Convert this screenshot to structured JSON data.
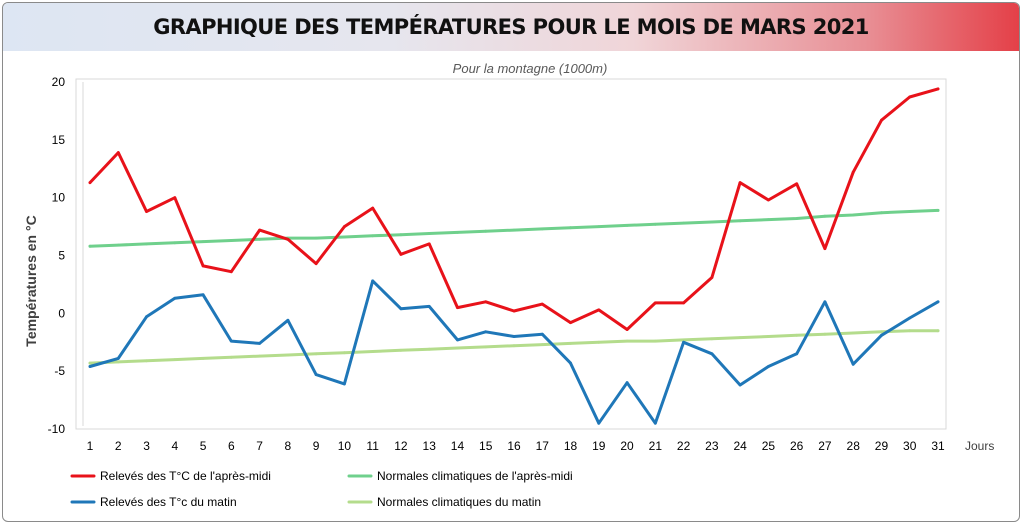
{
  "title": "GRAPHIQUE DES TEMPÉRATURES POUR LE MOIS DE MARS 2021",
  "colors": {
    "apres_midi": "#e8121a",
    "matin": "#1f77b8",
    "normale_apres_midi": "#6fd08c",
    "normale_matin": "#b4dc8c",
    "banner_end": "#e44048",
    "banner_start": "#dde6f3"
  },
  "chart_data": {
    "type": "line",
    "title": "GRAPHIQUE DES TEMPÉRATURES POUR LE MOIS DE MARS 2021",
    "subtitle": "Pour la montagne (1000m)",
    "xlabel": "Jours",
    "ylabel": "Températures en °C",
    "ylim": [
      -10,
      20
    ],
    "yticks": [
      -10,
      -5,
      0,
      5,
      10,
      15,
      20
    ],
    "grid": false,
    "legend_position": "bottom",
    "x": [
      1,
      2,
      3,
      4,
      5,
      6,
      7,
      8,
      9,
      10,
      11,
      12,
      13,
      14,
      15,
      16,
      17,
      18,
      19,
      20,
      21,
      22,
      23,
      24,
      25,
      26,
      27,
      28,
      29,
      30,
      31
    ],
    "series": [
      {
        "key": "apres_midi",
        "name": "Relevés des T°C de l'après-midi",
        "values": [
          11.3,
          13.9,
          8.8,
          10.0,
          4.1,
          3.6,
          7.2,
          6.4,
          4.3,
          7.5,
          9.1,
          5.1,
          6.0,
          0.5,
          1.0,
          0.2,
          0.8,
          -0.8,
          0.3,
          -1.4,
          0.9,
          0.9,
          3.1,
          11.3,
          9.8,
          11.2,
          5.6,
          12.2,
          16.7,
          18.7,
          19.4
        ]
      },
      {
        "key": "normale_apres_midi",
        "name": "Normales climatiques de l'après-midi",
        "values": [
          5.8,
          5.9,
          6.0,
          6.1,
          6.2,
          6.3,
          6.4,
          6.5,
          6.5,
          6.6,
          6.7,
          6.8,
          6.9,
          7.0,
          7.1,
          7.2,
          7.3,
          7.4,
          7.5,
          7.6,
          7.7,
          7.8,
          7.9,
          8.0,
          8.1,
          8.2,
          8.4,
          8.5,
          8.7,
          8.8,
          8.9
        ]
      },
      {
        "key": "matin",
        "name": "Relevés des T°c du matin",
        "values": [
          -4.6,
          -3.9,
          -0.3,
          1.3,
          1.6,
          -2.4,
          -2.6,
          -0.6,
          -5.3,
          -6.1,
          2.8,
          0.4,
          0.6,
          -2.3,
          -1.6,
          -2.0,
          -1.8,
          -4.3,
          -9.5,
          -6.0,
          -9.5,
          -2.5,
          -3.5,
          -6.2,
          -4.6,
          -3.5,
          1.0,
          -4.4,
          -1.9,
          -0.4,
          1.0
        ]
      },
      {
        "key": "normale_matin",
        "name": "Normales climatiques du matin",
        "values": [
          -4.3,
          -4.2,
          -4.1,
          -4.0,
          -3.9,
          -3.8,
          -3.7,
          -3.6,
          -3.5,
          -3.4,
          -3.3,
          -3.2,
          -3.1,
          -3.0,
          -2.9,
          -2.8,
          -2.7,
          -2.6,
          -2.5,
          -2.4,
          -2.4,
          -2.3,
          -2.2,
          -2.1,
          -2.0,
          -1.9,
          -1.8,
          -1.7,
          -1.6,
          -1.5,
          -1.5
        ]
      }
    ]
  }
}
